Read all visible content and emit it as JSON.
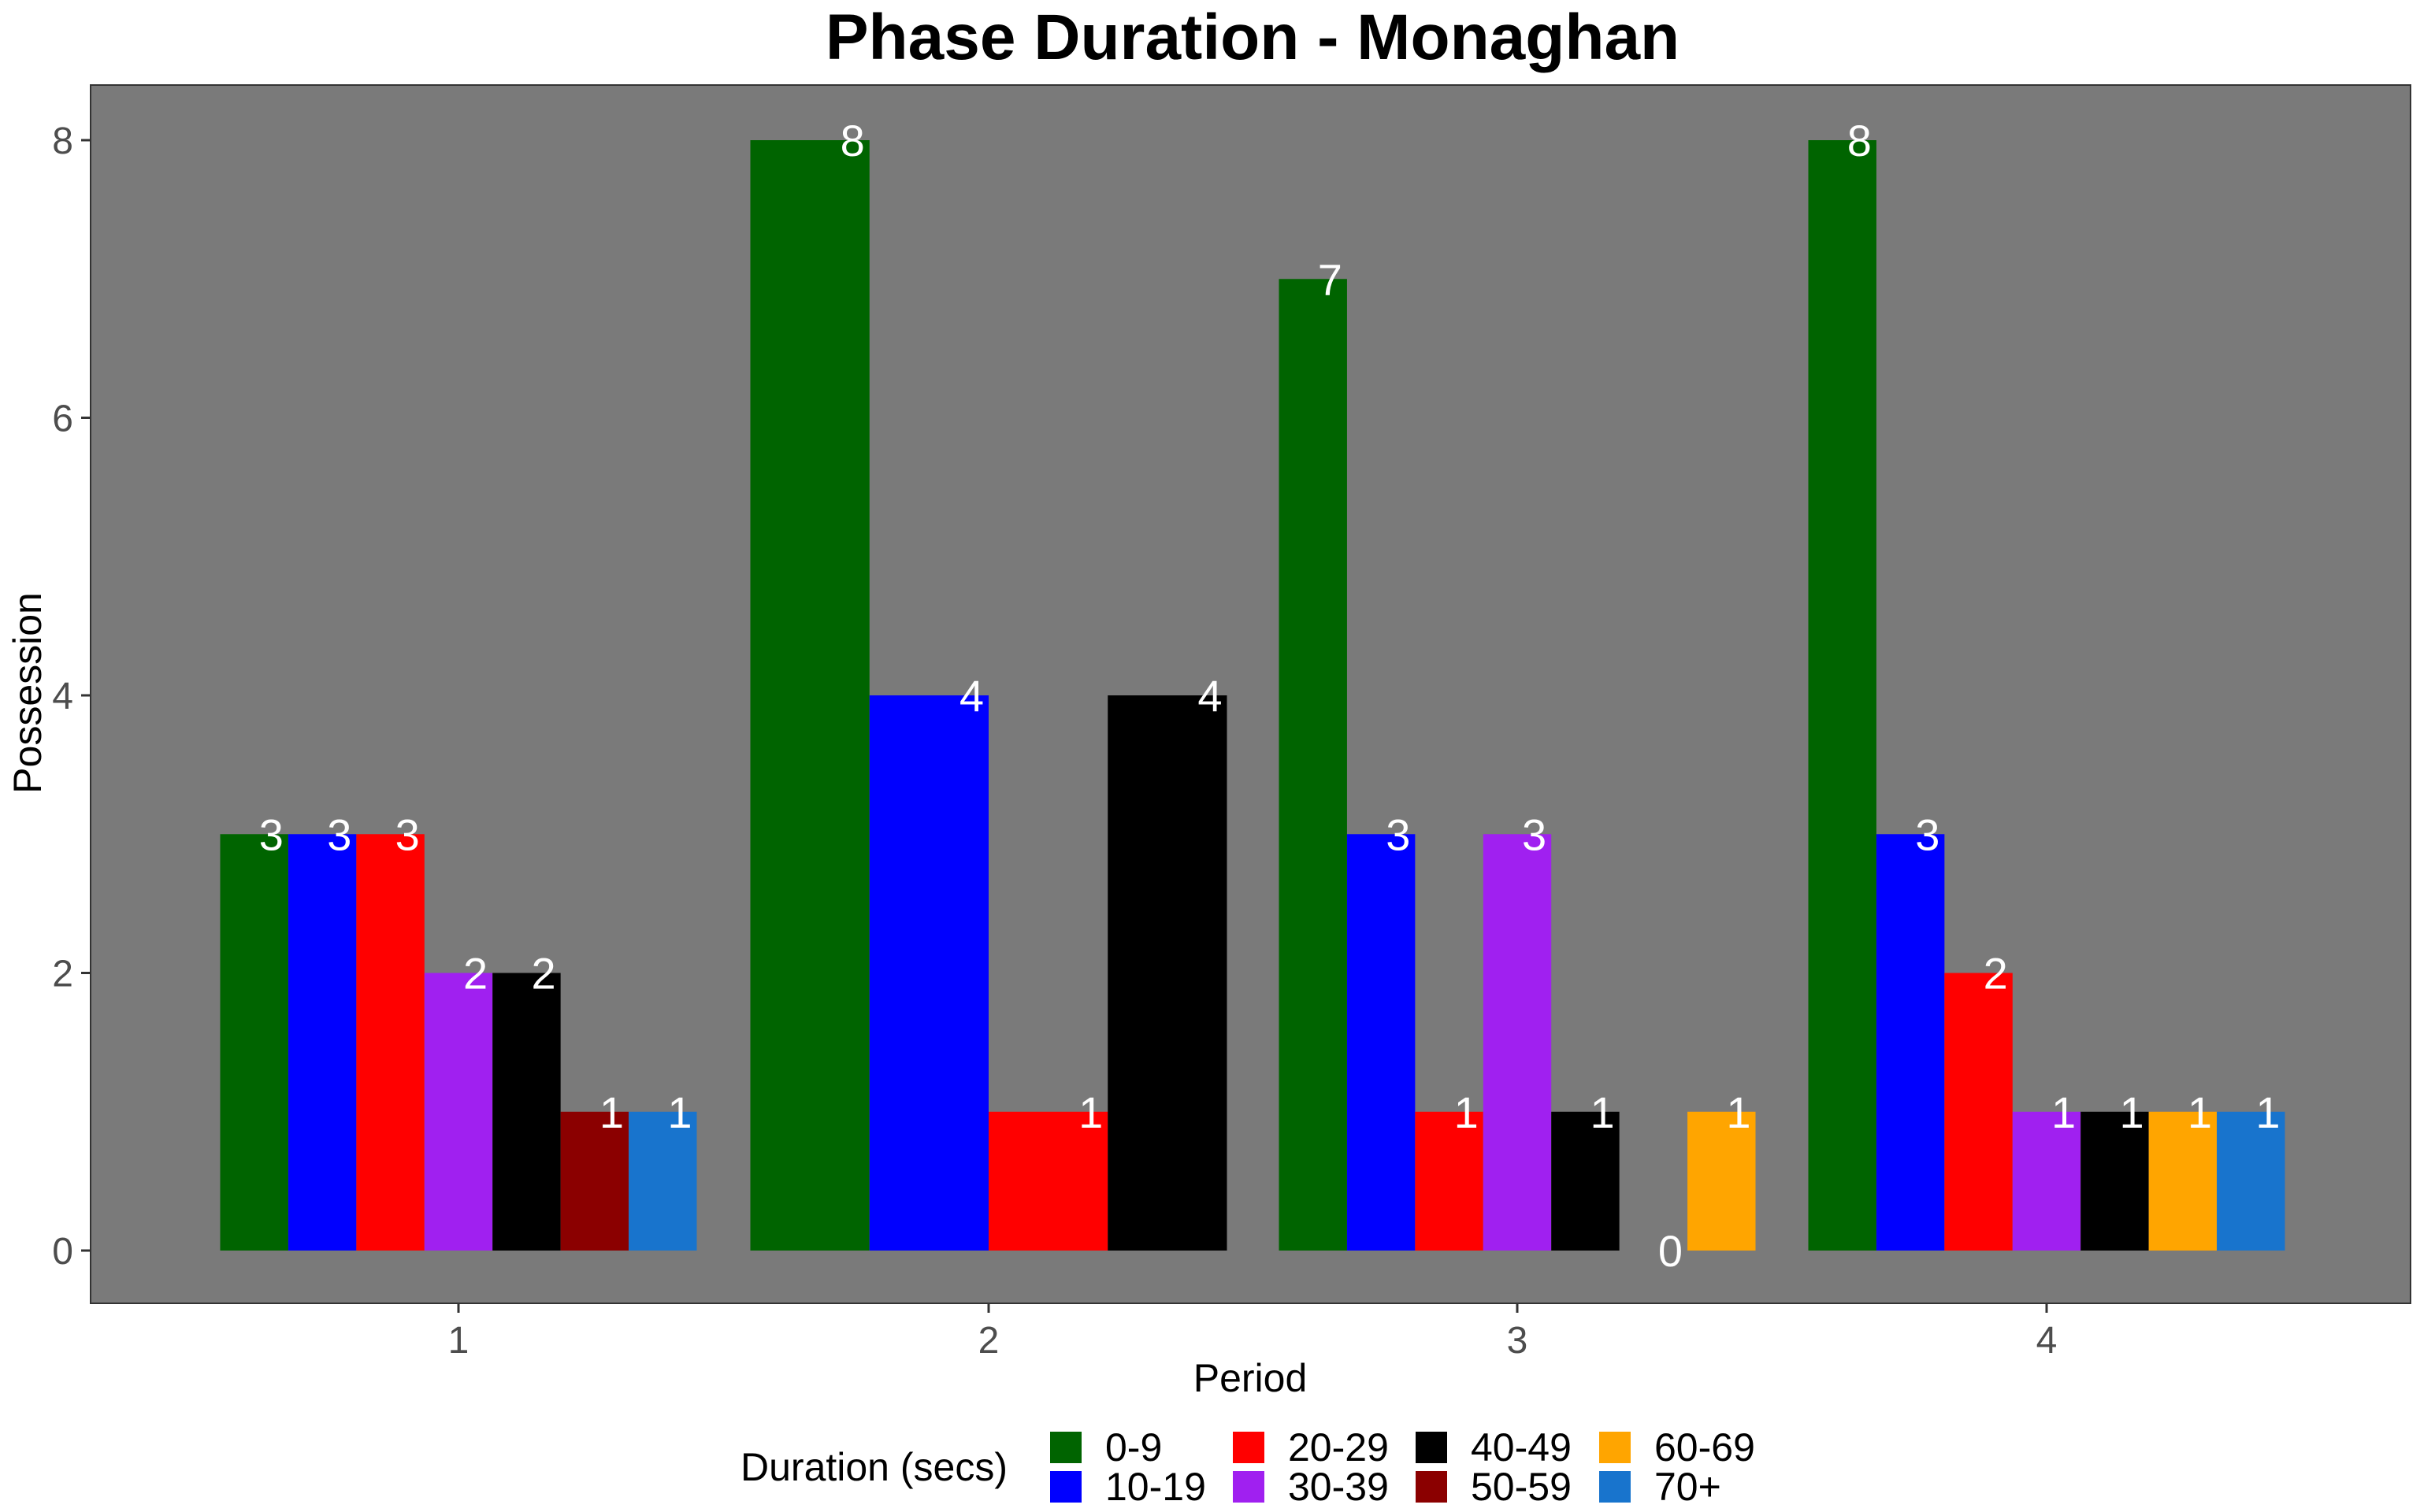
{
  "chart_data": {
    "type": "bar",
    "title": "Phase Duration - Monaghan",
    "xlabel": "Period",
    "ylabel": "Possession",
    "categories": [
      "1",
      "2",
      "3",
      "4"
    ],
    "ylim": [
      0,
      8.4
    ],
    "yticks": [
      "0",
      "2",
      "4",
      "6",
      "8"
    ],
    "grid": false,
    "legend": {
      "title": "Duration (secs)",
      "placement": "bottom",
      "entries": [
        "0-9",
        "10-19",
        "20-29",
        "30-39",
        "40-49",
        "50-59",
        "60-69",
        "70+"
      ]
    },
    "colors": {
      "panel": "#7a7a7a",
      "0-9": "#006400",
      "10-19": "#0000ff",
      "20-29": "#ff0000",
      "30-39": "#a020f0",
      "40-49": "#000000",
      "50-59": "#8b0000",
      "60-69": "#ffa500",
      "70+": "#1874cd"
    },
    "groups": [
      {
        "period": "1",
        "bars": [
          {
            "series": "0-9",
            "value": 3,
            "label": "3"
          },
          {
            "series": "10-19",
            "value": 3,
            "label": "3"
          },
          {
            "series": "20-29",
            "value": 3,
            "label": "3"
          },
          {
            "series": "30-39",
            "value": 2,
            "label": "2"
          },
          {
            "series": "40-49",
            "value": 2,
            "label": "2"
          },
          {
            "series": "50-59",
            "value": 1,
            "label": "1"
          },
          {
            "series": "70+",
            "value": 1,
            "label": "1"
          }
        ]
      },
      {
        "period": "2",
        "bars": [
          {
            "series": "0-9",
            "value": 8,
            "label": "8"
          },
          {
            "series": "10-19",
            "value": 4,
            "label": "4"
          },
          {
            "series": "20-29",
            "value": 1,
            "label": "1"
          },
          {
            "series": "40-49",
            "value": 4,
            "label": "4"
          }
        ]
      },
      {
        "period": "3",
        "bars": [
          {
            "series": "0-9",
            "value": 7,
            "label": "7"
          },
          {
            "series": "10-19",
            "value": 3,
            "label": "3"
          },
          {
            "series": "20-29",
            "value": 1,
            "label": "1"
          },
          {
            "series": "30-39",
            "value": 3,
            "label": "3"
          },
          {
            "series": "40-49",
            "value": 1,
            "label": "1"
          },
          {
            "series": "50-59",
            "value": 0,
            "label": "0"
          },
          {
            "series": "60-69",
            "value": 1,
            "label": "1"
          }
        ]
      },
      {
        "period": "4",
        "bars": [
          {
            "series": "0-9",
            "value": 8,
            "label": "8"
          },
          {
            "series": "10-19",
            "value": 3,
            "label": "3"
          },
          {
            "series": "20-29",
            "value": 2,
            "label": "2"
          },
          {
            "series": "30-39",
            "value": 1,
            "label": "1"
          },
          {
            "series": "40-49",
            "value": 1,
            "label": "1"
          },
          {
            "series": "60-69",
            "value": 1,
            "label": "1"
          },
          {
            "series": "70+",
            "value": 1,
            "label": "1"
          }
        ]
      }
    ]
  }
}
